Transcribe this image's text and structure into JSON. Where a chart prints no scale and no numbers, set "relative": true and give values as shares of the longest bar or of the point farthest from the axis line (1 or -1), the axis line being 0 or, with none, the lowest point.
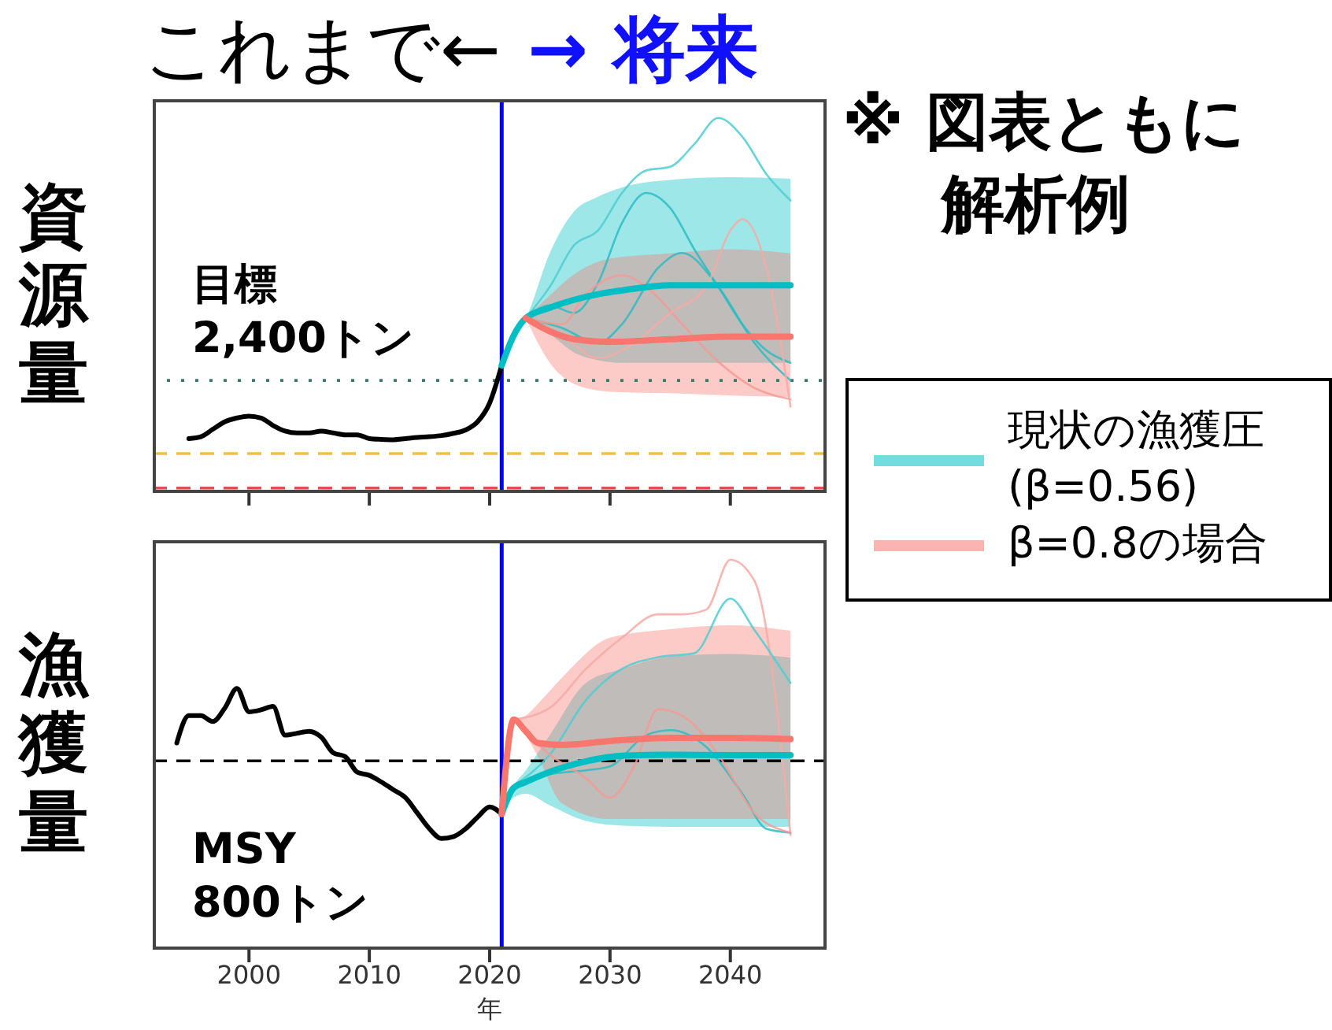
{
  "chart_data": [
    {
      "type": "line",
      "relative": true,
      "ylabel": "資源量",
      "xlim": [
        1992,
        2048
      ],
      "xticks": [
        2000,
        2010,
        2020,
        2030,
        2040
      ],
      "tick_labels": false,
      "legend": "right",
      "annotations": [
        "これまで←",
        "→ 将来",
        "※ 図表ともに解析例"
      ],
      "ref_lines": [
        {
          "axis": "y",
          "value": 0.3,
          "label": "目標\n2,400トン",
          "color": "#3a7a6a",
          "line_style": "dotted"
        },
        {
          "axis": "y",
          "value": 0.105,
          "label": null,
          "color": "#f0c040",
          "line_style": "dashed"
        },
        {
          "axis": "y",
          "value": 0.013,
          "label": null,
          "color": "#e05050",
          "line_style": "dashed"
        },
        {
          "axis": "x",
          "value": 2021,
          "label": null,
          "color": "#0000ff",
          "line_style": "solid"
        }
      ],
      "series": [
        {
          "color": "#000000",
          "x": [
            1995,
            1996,
            1997,
            1998,
            1999,
            2000,
            2001,
            2002,
            2003,
            2004,
            2005,
            2006,
            2007,
            2008,
            2009,
            2010,
            2011,
            2012,
            2013,
            2014,
            2015,
            2016,
            2017,
            2018,
            2019,
            2020,
            2021
          ],
          "values": [
            0.145,
            0.15,
            0.17,
            0.19,
            0.2,
            0.205,
            0.2,
            0.18,
            0.165,
            0.16,
            0.16,
            0.165,
            0.16,
            0.155,
            0.155,
            0.145,
            0.143,
            0.142,
            0.145,
            0.148,
            0.15,
            0.153,
            0.159,
            0.168,
            0.19,
            0.24,
            0.34
          ]
        },
        {
          "name": "現状の漁獲圧\n(β=0.56)",
          "color": "#00bfc4",
          "x": [
            2021,
            2022,
            2023,
            2025,
            2027,
            2029,
            2031,
            2035,
            2040,
            2045
          ],
          "values": [
            0.34,
            0.42,
            0.466,
            0.494,
            0.515,
            0.53,
            0.54,
            0.554,
            0.554,
            0.554
          ],
          "lower": [
            0.34,
            0.42,
            0.466,
            0.424,
            0.375,
            0.354,
            0.347,
            0.347,
            0.347,
            0.347
          ],
          "upper": [
            0.34,
            0.42,
            0.466,
            0.64,
            0.75,
            0.79,
            0.815,
            0.835,
            0.842,
            0.838
          ]
        },
        {
          "name": "β=0.8の場合",
          "color": "#f8766d",
          "x": [
            2023,
            2025,
            2027,
            2030,
            2035,
            2040,
            2045
          ],
          "values": [
            0.466,
            0.431,
            0.41,
            0.403,
            0.41,
            0.417,
            0.417
          ],
          "lower": [
            0.466,
            0.347,
            0.291,
            0.27,
            0.266,
            0.26,
            0.256
          ],
          "upper": [
            0.466,
            0.527,
            0.583,
            0.625,
            0.639,
            0.65,
            0.639
          ]
        },
        {
          "color": "#4fcdd1",
          "x": [
            2023,
            2025,
            2027,
            2029,
            2031,
            2033,
            2035,
            2037,
            2039,
            2041,
            2043,
            2045
          ],
          "values": [
            0.466,
            0.55,
            0.66,
            0.7,
            0.8,
            0.86,
            0.87,
            0.93,
            1.0,
            0.95,
            0.85,
            0.78
          ]
        },
        {
          "color": "#2bbcc2",
          "x": [
            2023,
            2025,
            2027,
            2029,
            2031,
            2033,
            2035,
            2037,
            2039,
            2041,
            2043,
            2045
          ],
          "values": [
            0.466,
            0.5,
            0.48,
            0.56,
            0.72,
            0.8,
            0.76,
            0.65,
            0.55,
            0.45,
            0.38,
            0.347
          ]
        },
        {
          "color": "#2bbcc2",
          "x": [
            2023,
            2026,
            2029,
            2031,
            2034,
            2036,
            2039,
            2042,
            2045
          ],
          "values": [
            0.466,
            0.44,
            0.4,
            0.45,
            0.6,
            0.64,
            0.55,
            0.4,
            0.3
          ]
        },
        {
          "color": "#f59a93",
          "x": [
            2023,
            2026,
            2028,
            2031,
            2033,
            2036,
            2039,
            2042,
            2045
          ],
          "values": [
            0.466,
            0.45,
            0.53,
            0.58,
            0.55,
            0.45,
            0.35,
            0.28,
            0.25
          ]
        },
        {
          "color": "#f4aaa4",
          "x": [
            2023,
            2026,
            2029,
            2032,
            2035,
            2038,
            2040,
            2041,
            2043,
            2045
          ],
          "values": [
            0.466,
            0.42,
            0.36,
            0.4,
            0.48,
            0.55,
            0.7,
            0.73,
            0.6,
            0.23
          ]
        }
      ]
    },
    {
      "type": "line",
      "relative": true,
      "ylabel": "漁獲量",
      "xlabel": "年",
      "xlim": [
        1992,
        2048
      ],
      "xticks": [
        2000,
        2010,
        2020,
        2030,
        2040
      ],
      "tick_labels": "x",
      "ref_lines": [
        {
          "axis": "y",
          "value": 0.484,
          "label": "MSY\n800トン",
          "color": "#000000",
          "line_style": "dashed"
        },
        {
          "axis": "x",
          "value": 2021,
          "label": null,
          "color": "#0000ff",
          "line_style": "solid"
        }
      ],
      "series": [
        {
          "color": "#000000",
          "x": [
            1994,
            1995,
            1996,
            1997,
            1998,
            1999,
            2000,
            2001,
            2002,
            2003,
            2004,
            2005,
            2006,
            2007,
            2008,
            2009,
            2010,
            2011,
            2012,
            2013,
            2014,
            2015,
            2016,
            2017,
            2018,
            2019,
            2020,
            2021
          ],
          "values": [
            0.53,
            0.6,
            0.6,
            0.585,
            0.62,
            0.67,
            0.61,
            0.615,
            0.624,
            0.55,
            0.555,
            0.56,
            0.545,
            0.505,
            0.495,
            0.455,
            0.447,
            0.43,
            0.41,
            0.39,
            0.35,
            0.31,
            0.285,
            0.29,
            0.31,
            0.34,
            0.366,
            0.348
          ]
        },
        {
          "color": "#00bfc4",
          "x": [
            2021,
            2022,
            2023,
            2025,
            2028,
            2031,
            2035,
            2040,
            2045
          ],
          "values": [
            0.348,
            0.415,
            0.43,
            0.456,
            0.483,
            0.497,
            0.5,
            0.499,
            0.499
          ],
          "lower": [
            0.348,
            0.39,
            0.4,
            0.37,
            0.33,
            0.318,
            0.315,
            0.315,
            0.315
          ],
          "upper": [
            0.348,
            0.42,
            0.46,
            0.55,
            0.684,
            0.72,
            0.751,
            0.758,
            0.749
          ]
        },
        {
          "color": "#f8766d",
          "x": [
            2021,
            2022,
            2023,
            2024,
            2026,
            2030,
            2035,
            2040,
            2045
          ],
          "values": [
            0.348,
            0.59,
            0.56,
            0.53,
            0.525,
            0.535,
            0.543,
            0.543,
            0.54
          ],
          "lower": [
            0.348,
            0.59,
            0.55,
            0.496,
            0.375,
            0.335,
            0.335,
            0.335,
            0.335
          ],
          "upper": [
            0.348,
            0.59,
            0.6,
            0.63,
            0.697,
            0.8,
            0.822,
            0.832,
            0.818
          ]
        },
        {
          "color": "#f4aaa4",
          "x": [
            2022,
            2025,
            2028,
            2031,
            2034,
            2036,
            2038,
            2040,
            2042,
            2045
          ],
          "values": [
            0.59,
            0.62,
            0.72,
            0.8,
            0.86,
            0.86,
            0.872,
            1.0,
            0.946,
            0.294
          ]
        },
        {
          "color": "#4fcdd1",
          "x": [
            2022,
            2025,
            2028,
            2031,
            2034,
            2037,
            2040,
            2042,
            2045
          ],
          "values": [
            0.42,
            0.5,
            0.64,
            0.72,
            0.75,
            0.76,
            0.9,
            0.82,
            0.684
          ]
        },
        {
          "color": "#2bbcc2",
          "x": [
            2022,
            2025,
            2028,
            2030,
            2033,
            2035,
            2038,
            2041,
            2043,
            2045
          ],
          "values": [
            0.42,
            0.45,
            0.46,
            0.47,
            0.55,
            0.563,
            0.52,
            0.4,
            0.31,
            0.3
          ]
        },
        {
          "color": "#f59a93",
          "x": [
            2022,
            2025,
            2028,
            2030,
            2032,
            2034,
            2036,
            2039,
            2042,
            2045
          ],
          "values": [
            0.59,
            0.5,
            0.44,
            0.39,
            0.47,
            0.617,
            0.6,
            0.5,
            0.35,
            0.3
          ]
        }
      ]
    }
  ]
}
